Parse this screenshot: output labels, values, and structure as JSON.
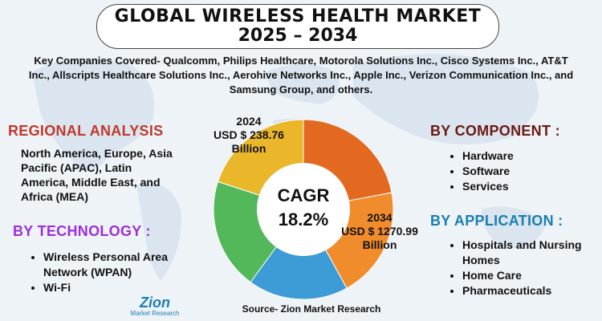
{
  "title": {
    "line1": "GLOBAL WIRELESS HEALTH MARKET",
    "line2": "2025 – 2034"
  },
  "companies": "Key Companies Covered- Qualcomm, Philips Healthcare, Motorola Solutions Inc., Cisco Systems Inc., AT&T Inc., Allscripts Healthcare Solutions Inc., Aerohive Networks Inc., Apple Inc., Verizon Communication Inc., and Samsung Group, and others.",
  "regional": {
    "heading": "REGIONAL ANALYSIS",
    "text": "North America, Europe, Asia Pacific (APAC), Latin America, Middle East, and Africa (MEA)"
  },
  "technology": {
    "heading": "BY TECHNOLOGY :",
    "items": [
      "Wireless Personal Area Network (WPAN)",
      "Wi-Fi"
    ]
  },
  "component": {
    "heading": "BY COMPONENT :",
    "items": [
      "Hardware",
      "Software",
      "Services"
    ]
  },
  "application": {
    "heading": "BY APPLICATION :",
    "items": [
      "Hospitals and Nursing Homes",
      "Home Care",
      "Pharmaceuticals"
    ]
  },
  "chart_data": {
    "type": "pie",
    "center_label": {
      "title": "CAGR",
      "value": "18.2%"
    },
    "slices": [
      {
        "color": "#e2691f",
        "value": 22
      },
      {
        "color": "#f08c2c",
        "value": 20
      },
      {
        "color": "#3d9bd5",
        "value": 18
      },
      {
        "color": "#52b85a",
        "value": 20
      },
      {
        "color": "#eab62a",
        "value": 20
      }
    ],
    "annotations": [
      {
        "year": "2024",
        "value": "USD $ 238.76",
        "unit": "Billion"
      },
      {
        "year": "2034",
        "value": "USD $ 1270.99",
        "unit": "Billion"
      }
    ]
  },
  "source": "Source- Zion Market Research",
  "logo": {
    "name": "Zion",
    "sub": "Market Research"
  },
  "colors": {
    "regional": "#c0392b",
    "technology": "#9b30d9",
    "component": "#6b1a12",
    "application": "#1a7fb0"
  }
}
